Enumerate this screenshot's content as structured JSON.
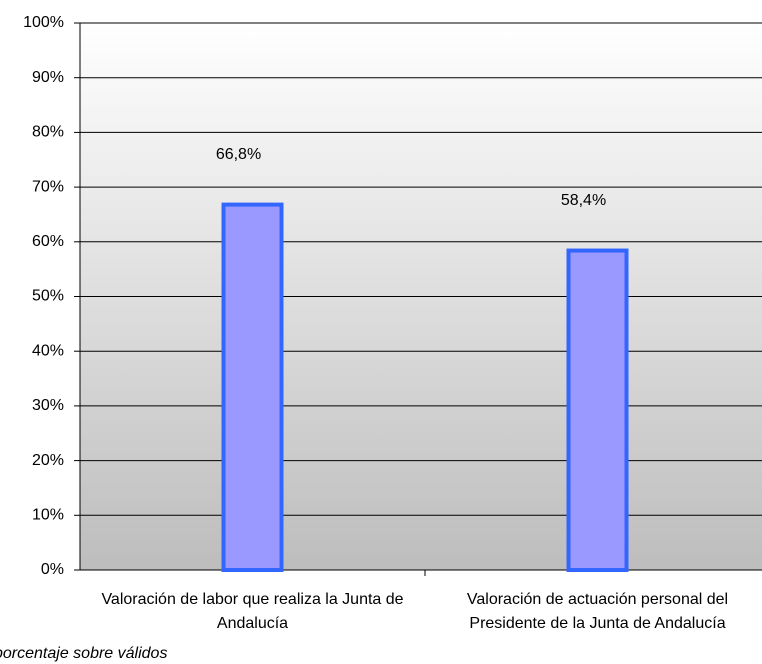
{
  "chart_data": {
    "type": "bar",
    "categories": [
      "Valoración de labor que realiza la Junta de Andalucía",
      "Valoración de actuación personal del Presidente de la Junta de Andalucía"
    ],
    "values": [
      66.8,
      58.4
    ],
    "value_labels": [
      "66,8%",
      "58,4%"
    ],
    "color": "#9999ff",
    "edge_color": "#3366ff",
    "ylim": [
      0,
      100
    ],
    "yticks": [
      {
        "value": 0,
        "label": "0%"
      },
      {
        "value": 10,
        "label": "10%"
      },
      {
        "value": 20,
        "label": "20%"
      },
      {
        "value": 30,
        "label": "30%"
      },
      {
        "value": 40,
        "label": "40%"
      },
      {
        "value": 50,
        "label": "50%"
      },
      {
        "value": 60,
        "label": "60%"
      },
      {
        "value": 70,
        "label": "70%"
      },
      {
        "value": 80,
        "label": "80%"
      },
      {
        "value": 90,
        "label": "90%"
      },
      {
        "value": 100,
        "label": "100%"
      }
    ],
    "grid": true,
    "note": "porcentaje sobre válidos"
  }
}
